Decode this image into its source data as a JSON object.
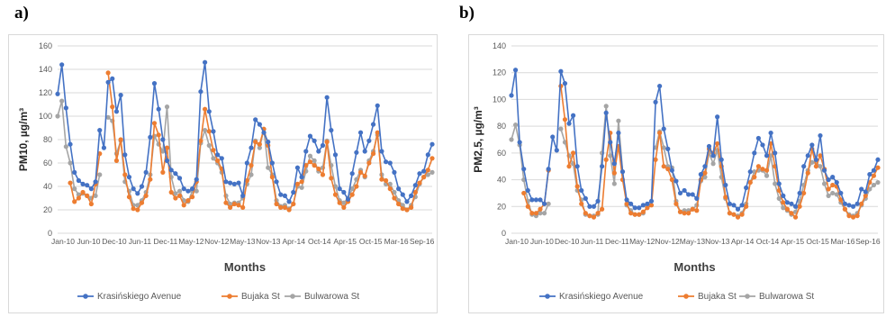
{
  "panels": [
    {
      "label": "a)"
    },
    {
      "label": "b)"
    }
  ],
  "colors": {
    "krasinskiego": "#4472C4",
    "bujaka": "#ED7D31",
    "bulwarowa": "#A5A5A5",
    "grid": "#d9d9d9",
    "axis_text": "#595959"
  },
  "chart_data": [
    {
      "type": "line",
      "xlabel": "Months",
      "ylabel": "PM10, µg/m³",
      "ylim": [
        0,
        160
      ],
      "yticks": [
        0,
        20,
        40,
        60,
        80,
        100,
        120,
        140,
        160
      ],
      "grid": true,
      "legend_position": "bottom",
      "x_tick_labels": [
        "Jan-10",
        "Jun-10",
        "Dec-10",
        "Jun-11",
        "Dec-11",
        "May-12",
        "Nov-12",
        "May-13",
        "Nov-13",
        "Apr-14",
        "Oct-14",
        "Apr-15",
        "Oct-15",
        "Mar-16",
        "Sep-16"
      ],
      "series": [
        {
          "name": "Krasińskiego Avenue",
          "values": [
            119,
            144,
            107,
            76,
            52,
            45,
            42,
            41,
            38,
            44,
            88,
            73,
            129,
            132,
            104,
            118,
            67,
            48,
            38,
            34,
            40,
            52,
            82,
            128,
            106,
            80,
            62,
            54,
            51,
            47,
            38,
            36,
            38,
            46,
            121,
            146,
            104,
            87,
            67,
            64,
            44,
            43,
            42,
            43,
            32,
            60,
            73,
            97,
            93,
            86,
            78,
            60,
            44,
            33,
            32,
            27,
            35,
            56,
            48,
            70,
            83,
            79,
            70,
            75,
            116,
            88,
            67,
            38,
            35,
            29,
            51,
            69,
            86,
            70,
            79,
            93,
            109,
            70,
            61,
            60,
            52,
            38,
            33,
            27,
            32,
            41,
            51,
            53,
            67,
            76
          ]
        },
        {
          "name": "Bujaka St",
          "values": [
            null,
            null,
            null,
            43,
            27,
            30,
            35,
            32,
            25,
            42,
            68,
            null,
            137,
            108,
            62,
            80,
            50,
            31,
            21,
            20,
            26,
            32,
            46,
            94,
            84,
            52,
            73,
            35,
            30,
            32,
            24,
            28,
            31,
            44,
            79,
            106,
            87,
            71,
            62,
            55,
            26,
            22,
            25,
            24,
            22,
            45,
            58,
            78,
            76,
            89,
            75,
            48,
            25,
            22,
            22,
            20,
            25,
            42,
            44,
            58,
            61,
            58,
            55,
            50,
            78,
            47,
            33,
            26,
            22,
            27,
            33,
            40,
            52,
            49,
            60,
            68,
            86,
            46,
            45,
            38,
            30,
            25,
            21,
            20,
            22,
            35,
            43,
            48,
            54,
            64
          ]
        },
        {
          "name": "Bulwarowa St",
          "values": [
            100,
            113,
            74,
            60,
            38,
            33,
            34,
            32,
            30,
            32,
            50,
            null,
            99,
            96,
            68,
            79,
            44,
            36,
            24,
            24,
            28,
            35,
            50,
            83,
            76,
            70,
            108,
            48,
            34,
            36,
            28,
            27,
            36,
            36,
            77,
            88,
            75,
            64,
            60,
            52,
            32,
            25,
            26,
            26,
            30,
            42,
            50,
            79,
            73,
            89,
            56,
            50,
            28,
            23,
            24,
            21,
            25,
            40,
            39,
            53,
            66,
            62,
            53,
            56,
            79,
            58,
            40,
            28,
            26,
            30,
            38,
            46,
            54,
            48,
            62,
            70,
            84,
            50,
            42,
            42,
            35,
            28,
            24,
            20,
            24,
            31,
            42,
            48,
            50,
            52
          ]
        }
      ]
    },
    {
      "type": "line",
      "xlabel": "Months",
      "ylabel": "PM2,5, µg/m³",
      "ylim": [
        0,
        140
      ],
      "yticks": [
        0,
        20,
        40,
        60,
        80,
        100,
        120,
        140
      ],
      "grid": true,
      "legend_position": "bottom",
      "x_tick_labels": [
        "Jan-10",
        "Jun-10",
        "Dec-10",
        "Jun-11",
        "Dec-11",
        "May-12",
        "Nov-12",
        "May-13",
        "Nov-13",
        "Apr-14",
        "Oct-14",
        "Apr-15",
        "Oct-15",
        "Mar-16",
        "Sep-16"
      ],
      "series": [
        {
          "name": "Krasińskiego Avenue",
          "values": [
            103,
            122,
            68,
            48,
            32,
            25,
            25,
            25,
            22,
            48,
            72,
            62,
            121,
            112,
            82,
            88,
            50,
            32,
            26,
            20,
            20,
            24,
            50,
            90,
            68,
            52,
            75,
            46,
            25,
            22,
            19,
            19,
            21,
            22,
            24,
            98,
            110,
            78,
            63,
            47,
            39,
            30,
            32,
            29,
            29,
            26,
            44,
            50,
            65,
            58,
            87,
            55,
            36,
            22,
            21,
            18,
            21,
            34,
            46,
            60,
            71,
            66,
            58,
            75,
            60,
            37,
            28,
            23,
            22,
            20,
            30,
            50,
            58,
            66,
            55,
            73,
            47,
            40,
            42,
            38,
            30,
            22,
            21,
            20,
            22,
            33,
            31,
            44,
            47,
            55
          ]
        },
        {
          "name": "Bujaka St",
          "values": [
            null,
            null,
            null,
            30,
            20,
            15,
            15,
            18,
            22,
            47,
            null,
            null,
            110,
            85,
            50,
            60,
            35,
            22,
            15,
            13,
            12,
            15,
            18,
            55,
            75,
            45,
            65,
            40,
            22,
            15,
            14,
            14,
            16,
            19,
            21,
            55,
            75,
            50,
            48,
            40,
            22,
            16,
            15,
            15,
            18,
            17,
            40,
            45,
            63,
            60,
            67,
            50,
            27,
            15,
            14,
            12,
            14,
            20,
            38,
            42,
            50,
            48,
            47,
            67,
            50,
            32,
            23,
            18,
            15,
            12,
            20,
            30,
            45,
            63,
            50,
            58,
            48,
            33,
            36,
            35,
            25,
            18,
            13,
            12,
            13,
            22,
            28,
            38,
            43,
            49
          ]
        },
        {
          "name": "Bulwarowa St",
          "values": [
            70,
            81,
            66,
            40,
            24,
            14,
            13,
            15,
            15,
            22,
            null,
            null,
            78,
            68,
            58,
            52,
            32,
            25,
            14,
            13,
            13,
            14,
            60,
            95,
            58,
            37,
            84,
            46,
            21,
            17,
            14,
            14,
            15,
            20,
            null,
            64,
            76,
            64,
            50,
            49,
            24,
            16,
            17,
            17,
            18,
            21,
            39,
            42,
            60,
            52,
            62,
            42,
            26,
            15,
            14,
            13,
            15,
            22,
            38,
            46,
            47,
            47,
            43,
            58,
            37,
            26,
            19,
            17,
            14,
            16,
            24,
            36,
            47,
            53,
            53,
            50,
            37,
            28,
            30,
            29,
            23,
            18,
            14,
            13,
            15,
            21,
            26,
            33,
            36,
            38
          ]
        }
      ]
    }
  ]
}
